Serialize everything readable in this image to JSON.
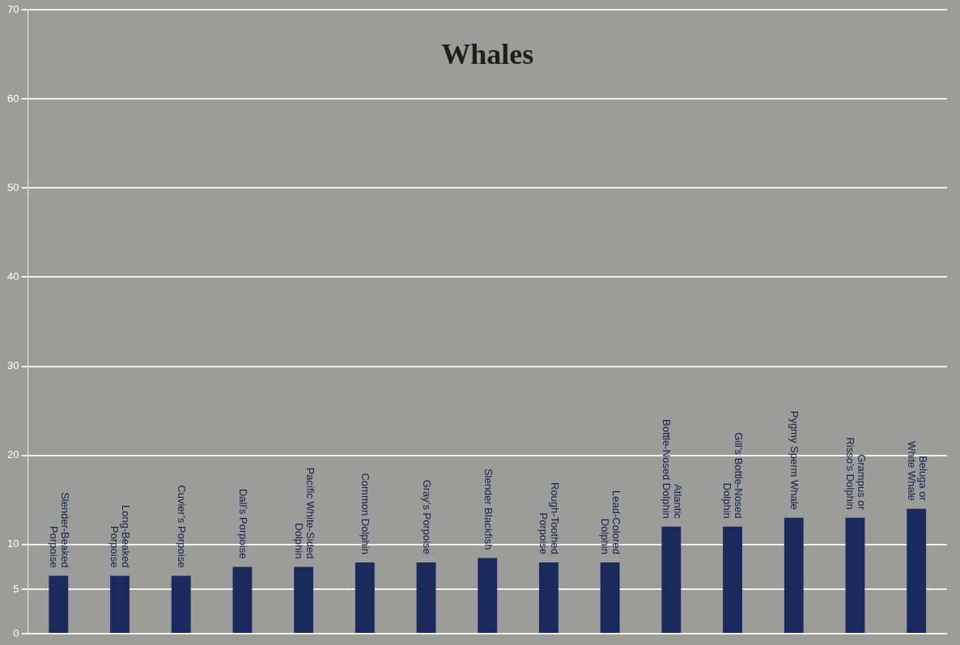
{
  "chart_data": {
    "type": "bar",
    "title": "Whales",
    "categories": [
      "Slender-Beaked Porpoise",
      "Long-Beaked Porpoise",
      "Cuvier’s Porpoise",
      "Dall’s Porpoise",
      "Pacific White-Sided Dolphin",
      "Common Dolphin",
      "Gray’s Porpoise",
      "Slender Blackfish",
      "Rough-Toothed Porpoise",
      "Lead-Colored Dolphin",
      "Atlantic Bottle-Nosed Dolphin",
      "Gill’s Bottle-Nosed Dolphin",
      "Pygmy Sperm Whale",
      "Grampus or Risso’s Dolphin",
      "Beluga or White Whale"
    ],
    "values": [
      6.5,
      6.5,
      6.5,
      7.5,
      7.5,
      8,
      8,
      8.5,
      8,
      8,
      12,
      12,
      13,
      13,
      14
    ],
    "color": "#1b2a5c",
    "ylim": [
      0,
      70
    ],
    "yticks": [
      0,
      5,
      10,
      20,
      30,
      40,
      50,
      60,
      70
    ],
    "grid": true,
    "tick_labels": "y"
  }
}
